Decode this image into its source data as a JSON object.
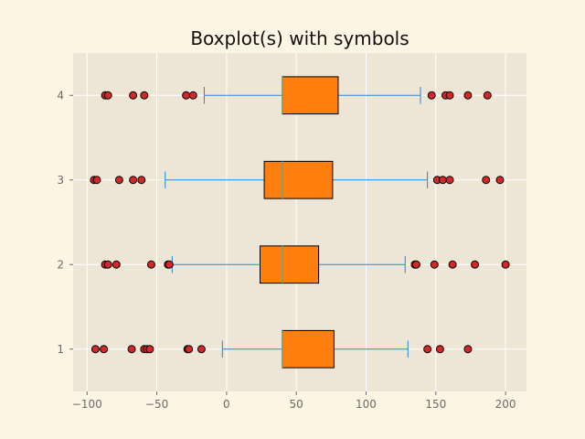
{
  "chart_data": {
    "type": "boxplot",
    "orientation": "horizontal",
    "title": "Boxplot(s) with symbols",
    "xlabel": "",
    "ylabel": "",
    "xlim": [
      -110,
      215
    ],
    "ylim": [
      0.5,
      4.5
    ],
    "grid": true,
    "legend": "none",
    "x_ticks": [
      -100,
      -50,
      0,
      50,
      100,
      150,
      200
    ],
    "y_ticks": [
      1,
      2,
      3,
      4
    ],
    "boxes": [
      {
        "position": 1,
        "whisker_low": -3,
        "q1": 40,
        "median": 40,
        "q3": 77,
        "whisker_high": 130,
        "fliers": [
          -94,
          -88,
          -68,
          -59,
          -57,
          -55,
          -28,
          -27,
          -18,
          144,
          153,
          173
        ]
      },
      {
        "position": 2,
        "whisker_low": -39,
        "q1": 24,
        "median": 40,
        "q3": 66,
        "whisker_high": 128,
        "fliers": [
          -87,
          -85,
          -79,
          -54,
          -42,
          -41,
          135,
          136,
          149,
          162,
          178,
          200
        ]
      },
      {
        "position": 3,
        "whisker_low": -44,
        "q1": 27,
        "median": 40,
        "q3": 76,
        "whisker_high": 144,
        "fliers": [
          -95,
          -93,
          -77,
          -67,
          -61,
          151,
          155,
          160,
          186,
          196
        ]
      },
      {
        "position": 4,
        "whisker_low": -16,
        "q1": 40,
        "median": 40,
        "q3": 80,
        "whisker_high": 139,
        "fliers": [
          -87,
          -85,
          -67,
          -59,
          -29,
          -24,
          147,
          157,
          160,
          173,
          187
        ]
      }
    ]
  },
  "colors": {
    "figure_bg": "#fcf5e3",
    "axes_bg": "#ede6d6",
    "grid": "#ffffff",
    "box_fill": "#ff7f0e",
    "box_edge": "#000000",
    "whisker": "#1f85de",
    "median": "#7a9e6e",
    "flier_fill": "#d62728",
    "flier_edge": "#000000",
    "tick_text": "#6a6a6a"
  }
}
